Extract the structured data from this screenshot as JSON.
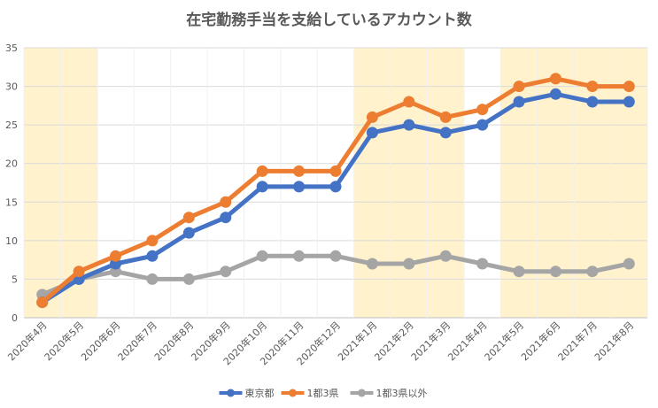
{
  "chart_data": {
    "type": "line",
    "title": "在宅勤務手当を支給しているアカウント数",
    "categories": [
      "2020年4月",
      "2020年5月",
      "2020年6月",
      "2020年7月",
      "2020年8月",
      "2020年9月",
      "2020年10月",
      "2020年11月",
      "2020年12月",
      "2021年1月",
      "2021年2月",
      "2021年3月",
      "2021年4月",
      "2021年5月",
      "2021年6月",
      "2021年7月",
      "2021年8月"
    ],
    "series": [
      {
        "name": "東京都",
        "color": "#4472c4",
        "values": [
          2,
          5,
          7,
          8,
          11,
          13,
          17,
          17,
          17,
          24,
          25,
          24,
          25,
          28,
          29,
          28,
          28
        ]
      },
      {
        "name": "1都3県",
        "color": "#ed7d31",
        "values": [
          2,
          6,
          8,
          10,
          13,
          15,
          19,
          19,
          19,
          26,
          28,
          26,
          27,
          30,
          31,
          30,
          30
        ]
      },
      {
        "name": "1都3県以外",
        "color": "#a5a5a5",
        "values": [
          3,
          5,
          6,
          5,
          5,
          6,
          8,
          8,
          8,
          7,
          7,
          8,
          7,
          6,
          6,
          6,
          7
        ]
      }
    ],
    "ylim": [
      0,
      35
    ],
    "yticks": [
      0,
      5,
      10,
      15,
      20,
      25,
      30,
      35
    ],
    "highlight_ranges": [
      [
        0,
        1
      ],
      [
        9,
        11
      ],
      [
        13,
        16
      ]
    ],
    "highlight_color": "#fff2cc",
    "grid": true,
    "legend_position": "bottom"
  }
}
